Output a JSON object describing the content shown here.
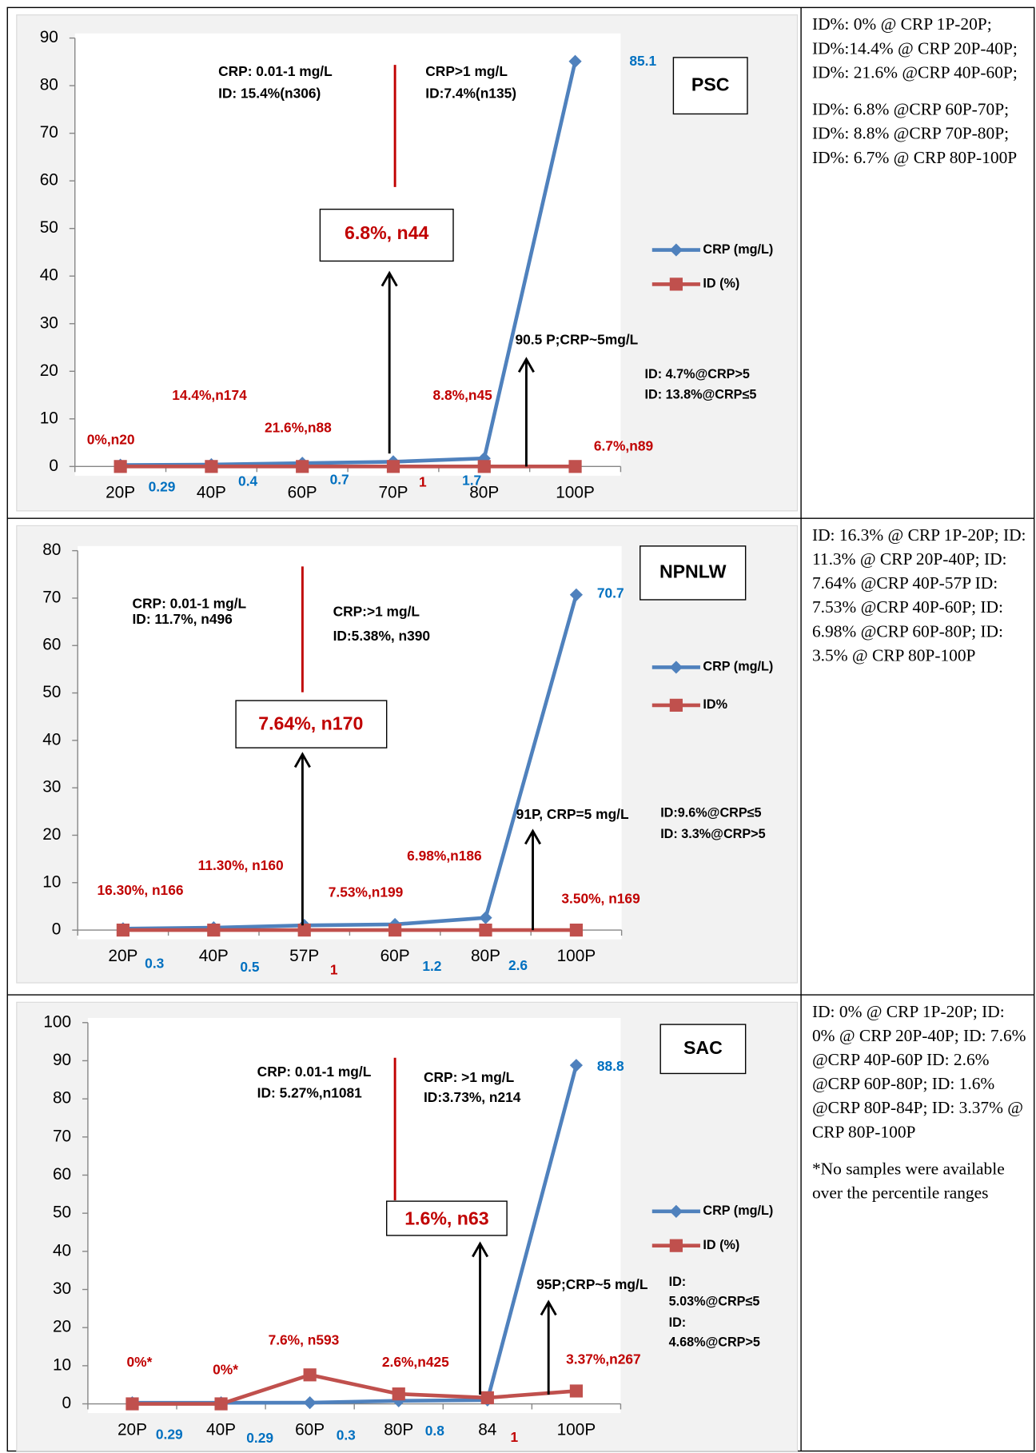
{
  "chart_data": [
    {
      "type": "line",
      "title": "PSC",
      "categories": [
        "20P",
        "40P",
        "60P",
        "70P",
        "80P",
        "100P"
      ],
      "series": [
        {
          "name": "CRP (mg/L)",
          "color": "#4f81bd",
          "marker": "diamond",
          "values": [
            0.29,
            0.4,
            0.7,
            1,
            1.7,
            85.1
          ],
          "value_label_colors": [
            "#0070c0",
            "#0070c0",
            "#0070c0",
            "#c00000",
            "#0070c0",
            "#0070c0"
          ]
        },
        {
          "name": "ID (%)",
          "color": "#c0504d",
          "marker": "square",
          "values": [
            0,
            0,
            0,
            0,
            0,
            0
          ]
        }
      ],
      "ylim": [
        0,
        90
      ],
      "yticks": [
        0,
        10,
        20,
        30,
        40,
        50,
        60,
        70,
        80,
        90
      ],
      "grid": false,
      "legend": "right",
      "annotations": [
        "CRP: 0.01-1 mg/L",
        "ID: 15.4%(n306)",
        "CRP>1 mg/L",
        "ID:7.4%(n135)",
        "6.8%, n44",
        "90.5 P;CRP~5mg/L",
        "ID: 4.7%@CRP>5",
        "ID: 13.8%@CRP≤5",
        "0%,n20",
        "14.4%,n174",
        "21.6%,n88",
        "8.8%,n45",
        "6.7%,n89"
      ]
    },
    {
      "type": "line",
      "title": "NPNLW",
      "categories": [
        "20P",
        "40P",
        "57P",
        "60P",
        "80P",
        "100P"
      ],
      "series": [
        {
          "name": "CRP (mg/L)",
          "color": "#4f81bd",
          "marker": "diamond",
          "values": [
            0.3,
            0.5,
            1,
            1.2,
            2.6,
            70.7
          ],
          "value_label_colors": [
            "#0070c0",
            "#0070c0",
            "#c00000",
            "#0070c0",
            "#0070c0",
            "#0070c0"
          ]
        },
        {
          "name": "ID%",
          "color": "#c0504d",
          "marker": "square",
          "values": [
            0,
            0,
            0,
            0,
            0,
            0
          ]
        }
      ],
      "ylim": [
        0,
        80
      ],
      "yticks": [
        0,
        10,
        20,
        30,
        40,
        50,
        60,
        70,
        80
      ],
      "grid": false,
      "legend": "right",
      "annotations": [
        "CRP: 0.01-1 mg/L",
        "ID: 11.7%, n496",
        "CRP:>1 mg/L",
        "ID:5.38%, n390",
        "7.64%, n170",
        "91P, CRP=5 mg/L",
        "ID:9.6%@CRP≤5",
        "ID: 3.3%@CRP>5",
        "16.30%, n166",
        "11.30%, n160",
        "7.53%,n199",
        "6.98%,n186",
        "3.50%, n169"
      ]
    },
    {
      "type": "line",
      "title": "SAC",
      "categories": [
        "20P",
        "40P",
        "60P",
        "80P",
        "84",
        "100P"
      ],
      "series": [
        {
          "name": "CRP (mg/L)",
          "color": "#4f81bd",
          "marker": "diamond",
          "values": [
            0.29,
            0.29,
            0.3,
            0.8,
            1,
            88.8
          ],
          "value_label_colors": [
            "#0070c0",
            "#0070c0",
            "#0070c0",
            "#0070c0",
            "#c00000",
            "#0070c0"
          ]
        },
        {
          "name": "ID (%)",
          "color": "#c0504d",
          "marker": "square",
          "values": [
            0,
            0,
            7.6,
            2.6,
            1.6,
            3.37
          ]
        }
      ],
      "ylim": [
        0,
        100
      ],
      "yticks": [
        0,
        10,
        20,
        30,
        40,
        50,
        60,
        70,
        80,
        90,
        100
      ],
      "grid": false,
      "legend": "right",
      "annotations": [
        "CRP: 0.01-1 mg/L",
        "ID: 5.27%,n1081",
        "CRP: >1 mg/L",
        "ID:3.73%, n214",
        "1.6%, n63",
        "95P;CRP~5 mg/L",
        "ID:",
        "5.03%@CRP≤5",
        "ID:",
        "4.68%@CRP>5",
        "0%*",
        "0%*",
        "7.6%, n593",
        "2.6%,n425",
        "3.37%,n267"
      ]
    }
  ],
  "side_notes": [
    [
      "ID%: 0% @ CRP 1P-20P; ID%:14.4% @ CRP 20P-40P; ID%: 21.6% @CRP 40P-60P;",
      "ID%: 6.8% @CRP 60P-70P; ID%: 8.8% @CRP 70P-80P; ID%: 6.7% @ CRP 80P-100P"
    ],
    [
      "ID: 16.3% @ CRP 1P-20P; ID: 11.3% @ CRP 20P-40P; ID: 7.64% @CRP 40P-57P ID: 7.53% @CRP 40P-60P; ID: 6.98% @CRP 60P-80P; ID: 3.5% @ CRP 80P-100P"
    ],
    [
      "ID: 0% @ CRP 1P-20P; ID: 0% @ CRP 20P-40P; ID: 7.6% @CRP 40P-60P ID: 2.6% @CRP 60P-80P; ID: 1.6% @CRP 80P-84P; ID: 3.37% @ CRP 80P-100P",
      "*No samples were available over the percentile ranges"
    ]
  ]
}
